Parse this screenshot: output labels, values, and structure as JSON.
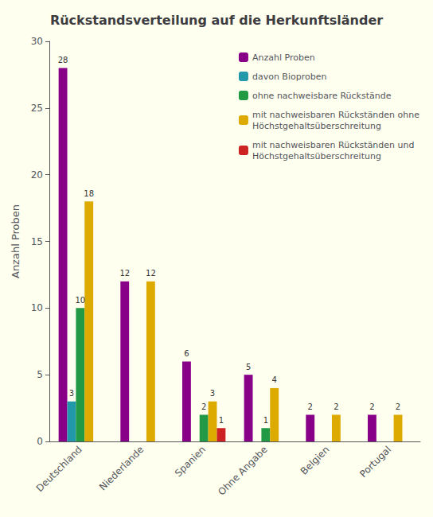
{
  "chart_data": {
    "type": "bar",
    "title": "Rückstandsverteilung auf die Herkunftsländer",
    "ylabel": "Anzahl Proben",
    "categories": [
      "Deutschland",
      "Niederlande",
      "Spanien",
      "Ohne Angabe",
      "Belgien",
      "Portugal"
    ],
    "series": [
      {
        "name": "Anzahl Proben",
        "color": "#880088",
        "values": [
          28,
          12,
          6,
          5,
          2,
          2
        ],
        "value_labels": [
          "28",
          "12",
          "6",
          "5",
          "2",
          "2"
        ]
      },
      {
        "name": "davon Bioproben",
        "color": "#2299AA",
        "values": [
          3,
          0,
          0,
          0,
          0,
          0
        ],
        "value_labels": [
          "3",
          null,
          null,
          null,
          null,
          null
        ]
      },
      {
        "name": "ohne nachweisbare Rückstände",
        "color": "#229944",
        "values": [
          10,
          0,
          2,
          1,
          0,
          0
        ],
        "value_labels": [
          "10",
          null,
          "2",
          "1",
          null,
          null
        ]
      },
      {
        "name": "mit nachweisbaren Rückständen ohne\nHöchstgehaltsüberschreitung",
        "color": "#DDAA00",
        "values": [
          18,
          12,
          3,
          4,
          2,
          2
        ],
        "value_labels": [
          "18",
          "12",
          "3",
          "4",
          "2",
          "2"
        ]
      },
      {
        "name": "mit nachweisbaren Rückständen und\nHöchstgehaltsüberschreitung",
        "color": "#CC2222",
        "values": [
          0,
          0,
          1,
          0,
          0,
          0
        ],
        "value_labels": [
          null,
          null,
          "1",
          null,
          null,
          null
        ]
      }
    ],
    "ylim": [
      0,
      30
    ],
    "yticks": [
      0,
      5,
      10,
      15,
      20,
      25,
      30
    ],
    "grid": false,
    "legend": "upper right",
    "data_labels": true
  }
}
